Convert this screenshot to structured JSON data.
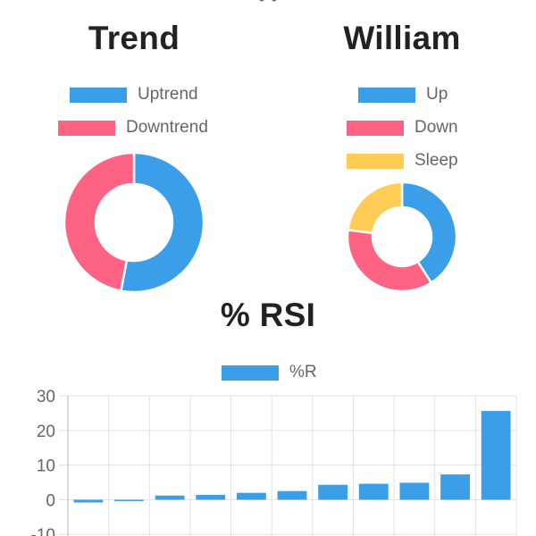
{
  "colors": {
    "blue": "#3a9fe8",
    "pink": "#ff6384",
    "yellow": "#ffcd56",
    "grid": "#e2e2e2",
    "text": "#666666"
  },
  "chart_data": [
    {
      "type": "pie",
      "title": "Trend",
      "labels": [
        "Uptrend",
        "Downtrend"
      ],
      "values": [
        53,
        47
      ],
      "colors": [
        "#3a9fe8",
        "#ff6384"
      ]
    },
    {
      "type": "pie",
      "title": "William",
      "labels": [
        "Up",
        "Down",
        "Sleep"
      ],
      "values": [
        41,
        36,
        23
      ],
      "colors": [
        "#3a9fe8",
        "#ff6384",
        "#ffcd56"
      ]
    },
    {
      "type": "bar",
      "title": "% RSI",
      "series": [
        {
          "name": "%R",
          "values": [
            -0.8,
            -0.3,
            1.2,
            1.4,
            2.0,
            2.5,
            4.3,
            4.6,
            4.9,
            7.3,
            25.6
          ]
        }
      ],
      "yticks": [
        "30",
        "20",
        "10",
        "0",
        "-10"
      ],
      "ylim": [
        -10,
        30
      ],
      "grid": true,
      "legend": "top"
    }
  ]
}
